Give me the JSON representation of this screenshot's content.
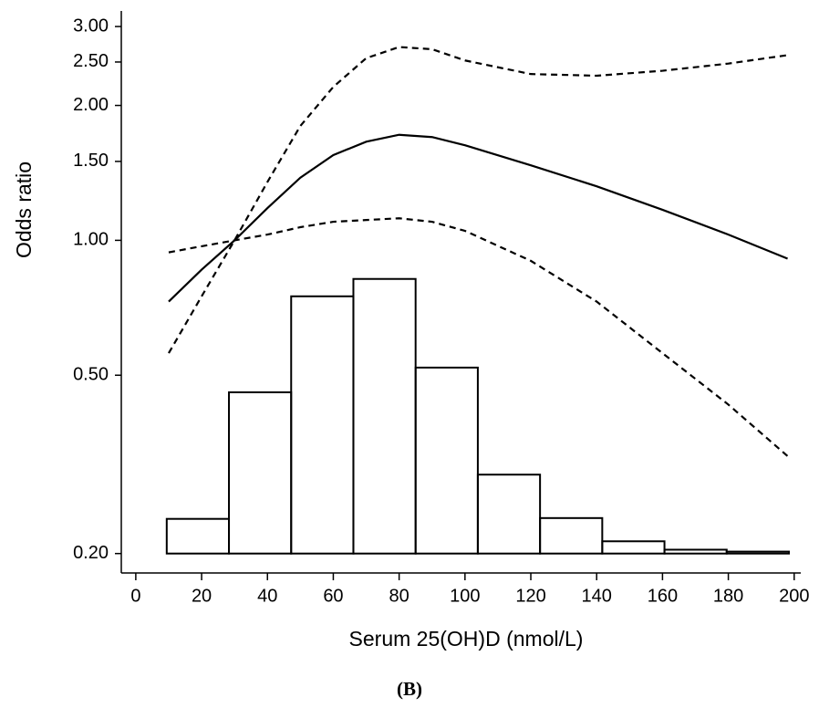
{
  "chart_data": {
    "type": "line",
    "xlabel": "Serum 25(OH)D (nmol/L)",
    "ylabel": "Odds ratio",
    "caption": "(B)",
    "log_y": true,
    "color": "#000000",
    "xlim": [
      -4.4,
      202
    ],
    "ylim": [
      0.181,
      3.25
    ],
    "xticks": [
      0,
      20,
      40,
      60,
      80,
      100,
      120,
      140,
      160,
      180,
      200
    ],
    "yticks": [
      {
        "value": 0.2,
        "label": "0.20"
      },
      {
        "value": 0.5,
        "label": "0.50"
      },
      {
        "value": 1,
        "label": "1.00"
      },
      {
        "value": 1.5,
        "label": "1.50"
      },
      {
        "value": 2,
        "label": "2.00"
      },
      {
        "value": 2.5,
        "label": "2.50"
      },
      {
        "value": 3,
        "label": "3.00"
      }
    ],
    "histogram": {
      "base": 0.2,
      "bins": [
        9.4,
        28.3,
        47.2,
        66.1,
        85,
        103.9,
        122.8,
        141.7,
        160.6,
        179.5,
        198.4
      ],
      "values": [
        0.239,
        0.458,
        0.75,
        0.82,
        0.52,
        0.3,
        0.24,
        0.213,
        0.204,
        0.202
      ]
    },
    "x": [
      10,
      20,
      30,
      40,
      50,
      60,
      70,
      80,
      90,
      100,
      120,
      140,
      160,
      180,
      198
    ],
    "series": [
      {
        "style": "solid",
        "values": [
          0.73,
          0.86,
          1.0,
          1.18,
          1.38,
          1.55,
          1.66,
          1.72,
          1.7,
          1.63,
          1.47,
          1.32,
          1.17,
          1.03,
          0.91
        ]
      },
      {
        "style": "dashed",
        "values": [
          0.56,
          0.75,
          1.0,
          1.35,
          1.8,
          2.2,
          2.55,
          2.7,
          2.67,
          2.52,
          2.35,
          2.33,
          2.39,
          2.48,
          2.59
        ]
      },
      {
        "style": "dashed",
        "values": [
          0.94,
          0.97,
          1.0,
          1.03,
          1.07,
          1.1,
          1.11,
          1.12,
          1.1,
          1.05,
          0.9,
          0.73,
          0.56,
          0.43,
          0.33
        ]
      }
    ]
  }
}
